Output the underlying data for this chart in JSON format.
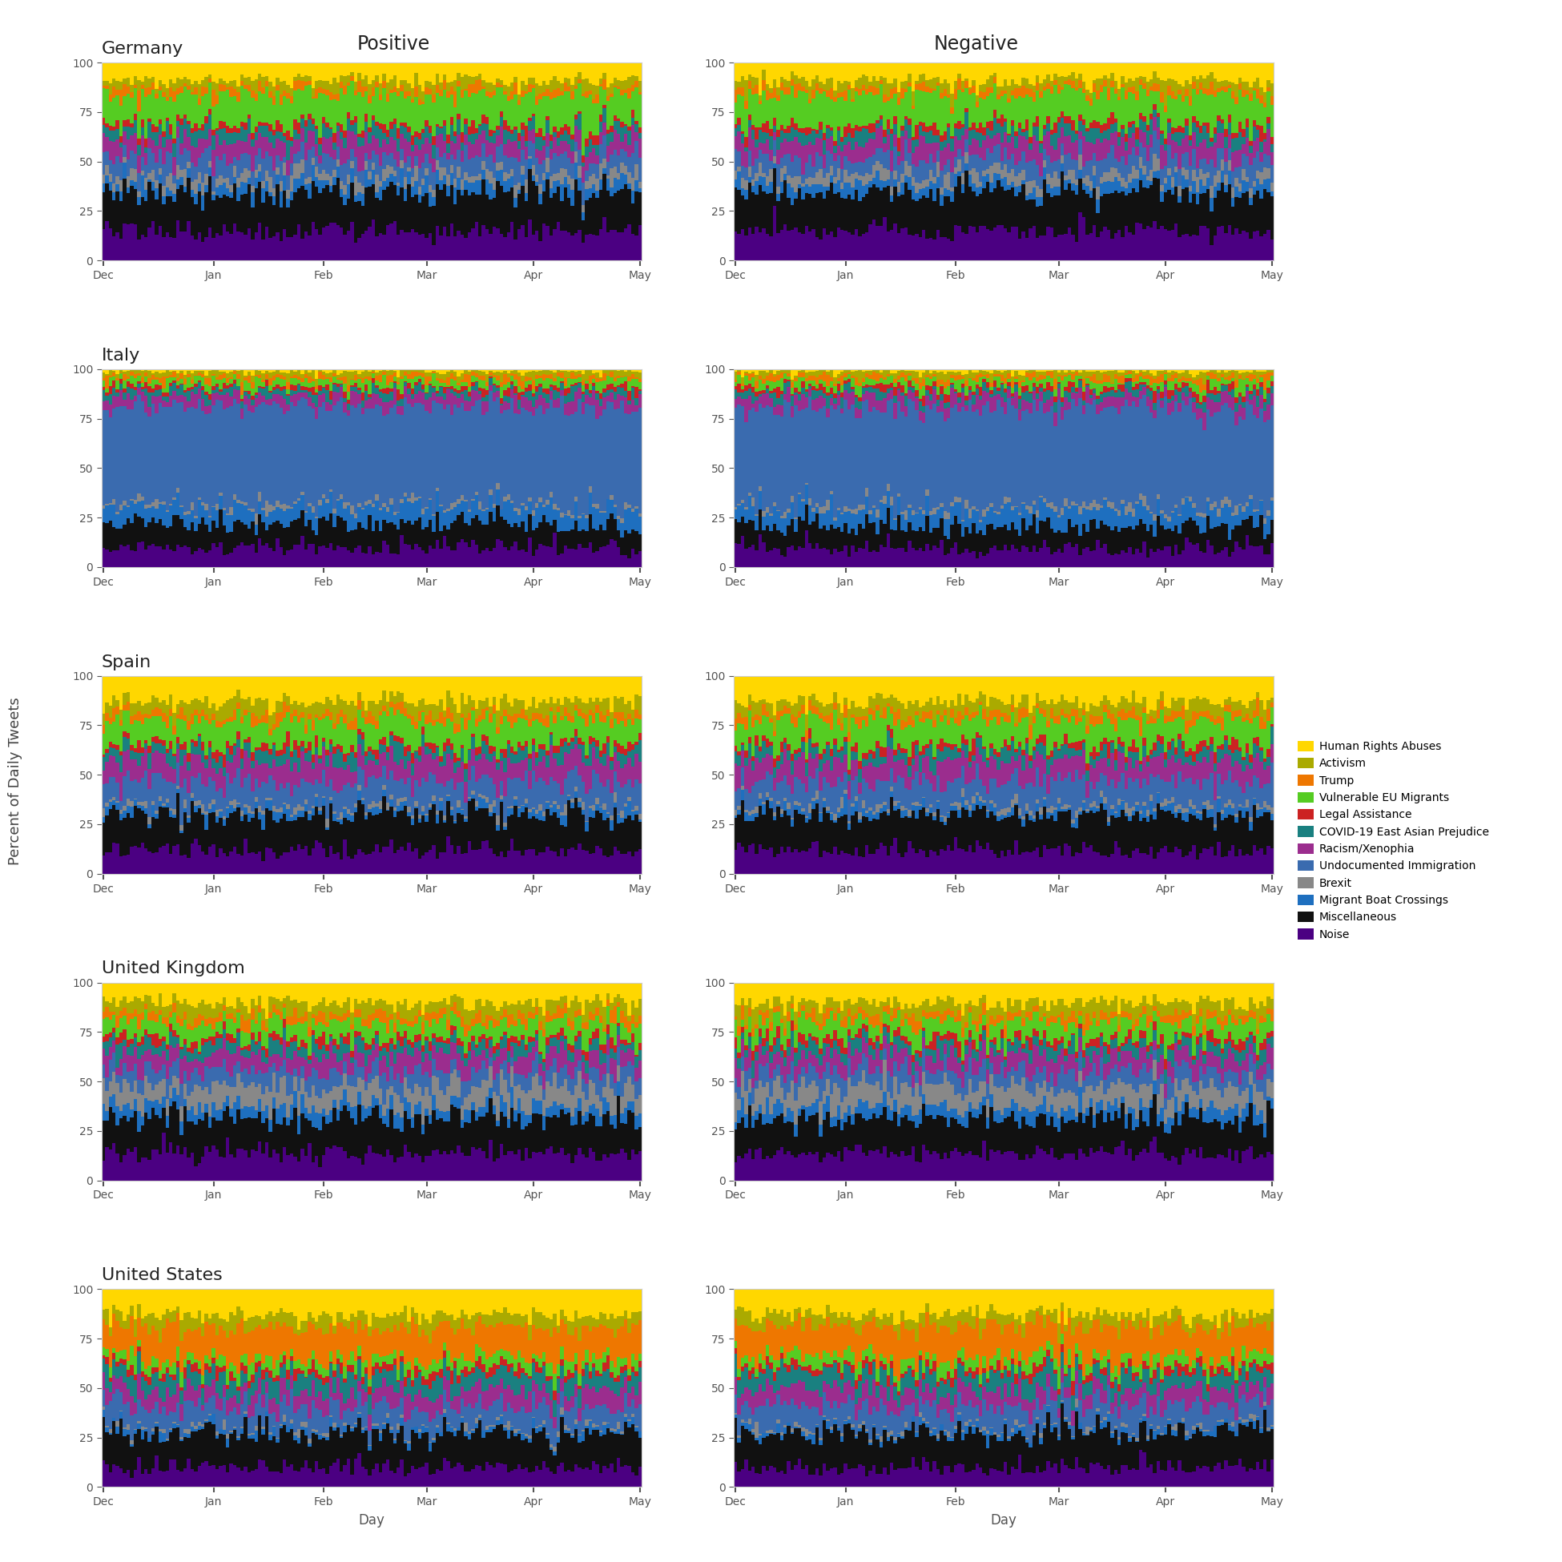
{
  "countries": [
    "Germany",
    "Italy",
    "Spain",
    "United Kingdom",
    "United States"
  ],
  "sentiments": [
    "Positive",
    "Negative"
  ],
  "topics": [
    "Noise",
    "Miscellaneous",
    "Migrant Boat Crossings",
    "Brexit",
    "Undocumented Immigration",
    "Racism/Xenophia",
    "COVID-19 East Asian Prejudice",
    "Legal Assistance",
    "Vulnerable EU Migrants",
    "Trump",
    "Activism",
    "Human Rights Abuses"
  ],
  "legend_topics": [
    "Human Rights Abuses",
    "Activism",
    "Trump",
    "Vulnerable EU Migrants",
    "Legal Assistance",
    "COVID-19 East Asian Prejudice",
    "Racism/Xenophia",
    "Undocumented Immigration",
    "Brexit",
    "Migrant Boat Crossings",
    "Miscellaneous",
    "Noise"
  ],
  "colors_bottom_to_top": [
    "#4B0082",
    "#111111",
    "#1E6FBF",
    "#888888",
    "#3A6BAF",
    "#9B2D8E",
    "#1A8080",
    "#CC2222",
    "#55CC22",
    "#EE7700",
    "#AAAA00",
    "#FFD700"
  ],
  "legend_colors": [
    "#FFD700",
    "#AAAA00",
    "#EE7700",
    "#55CC22",
    "#CC2222",
    "#1A8080",
    "#9B2D8E",
    "#3A6BAF",
    "#888888",
    "#1E6FBF",
    "#111111",
    "#4B0082"
  ],
  "n_days": 152,
  "month_ticks": [
    "Dec",
    "Jan",
    "Feb",
    "Mar",
    "Apr",
    "May"
  ],
  "month_positions": [
    0,
    31,
    62,
    91,
    121,
    151
  ],
  "ylim": [
    0,
    100
  ],
  "yticks": [
    0,
    25,
    50,
    75,
    100
  ],
  "ylabel": "Percent of Daily Tweets",
  "xlabel": "Day",
  "col_titles": [
    "Positive",
    "Negative"
  ],
  "background_color": "#ffffff",
  "country_profiles": {
    "Germany_pos": [
      15,
      20,
      5,
      5,
      8,
      8,
      5,
      3,
      15,
      3,
      4,
      9
    ],
    "Germany_neg": [
      15,
      20,
      5,
      5,
      8,
      8,
      5,
      3,
      15,
      3,
      4,
      9
    ],
    "Italy_pos": [
      10,
      12,
      8,
      2,
      50,
      5,
      3,
      2,
      3,
      2,
      2,
      1
    ],
    "Italy_neg": [
      10,
      12,
      8,
      2,
      50,
      5,
      3,
      2,
      3,
      2,
      2,
      1
    ],
    "Spain_pos": [
      12,
      18,
      3,
      2,
      12,
      10,
      5,
      3,
      12,
      4,
      6,
      13
    ],
    "Spain_neg": [
      12,
      18,
      3,
      2,
      12,
      10,
      5,
      3,
      12,
      4,
      6,
      13
    ],
    "United Kingdom_pos": [
      14,
      18,
      6,
      10,
      8,
      8,
      5,
      3,
      8,
      4,
      6,
      10
    ],
    "United Kingdom_neg": [
      14,
      18,
      6,
      10,
      8,
      8,
      5,
      3,
      8,
      4,
      6,
      10
    ],
    "United States_pos": [
      10,
      18,
      2,
      1,
      10,
      8,
      8,
      3,
      5,
      16,
      6,
      13
    ],
    "United States_neg": [
      10,
      18,
      2,
      1,
      10,
      8,
      8,
      3,
      5,
      16,
      6,
      13
    ]
  },
  "title_fontsize": 17,
  "country_fontsize": 16,
  "axis_fontsize": 12,
  "tick_fontsize": 11,
  "legend_fontsize": 11
}
